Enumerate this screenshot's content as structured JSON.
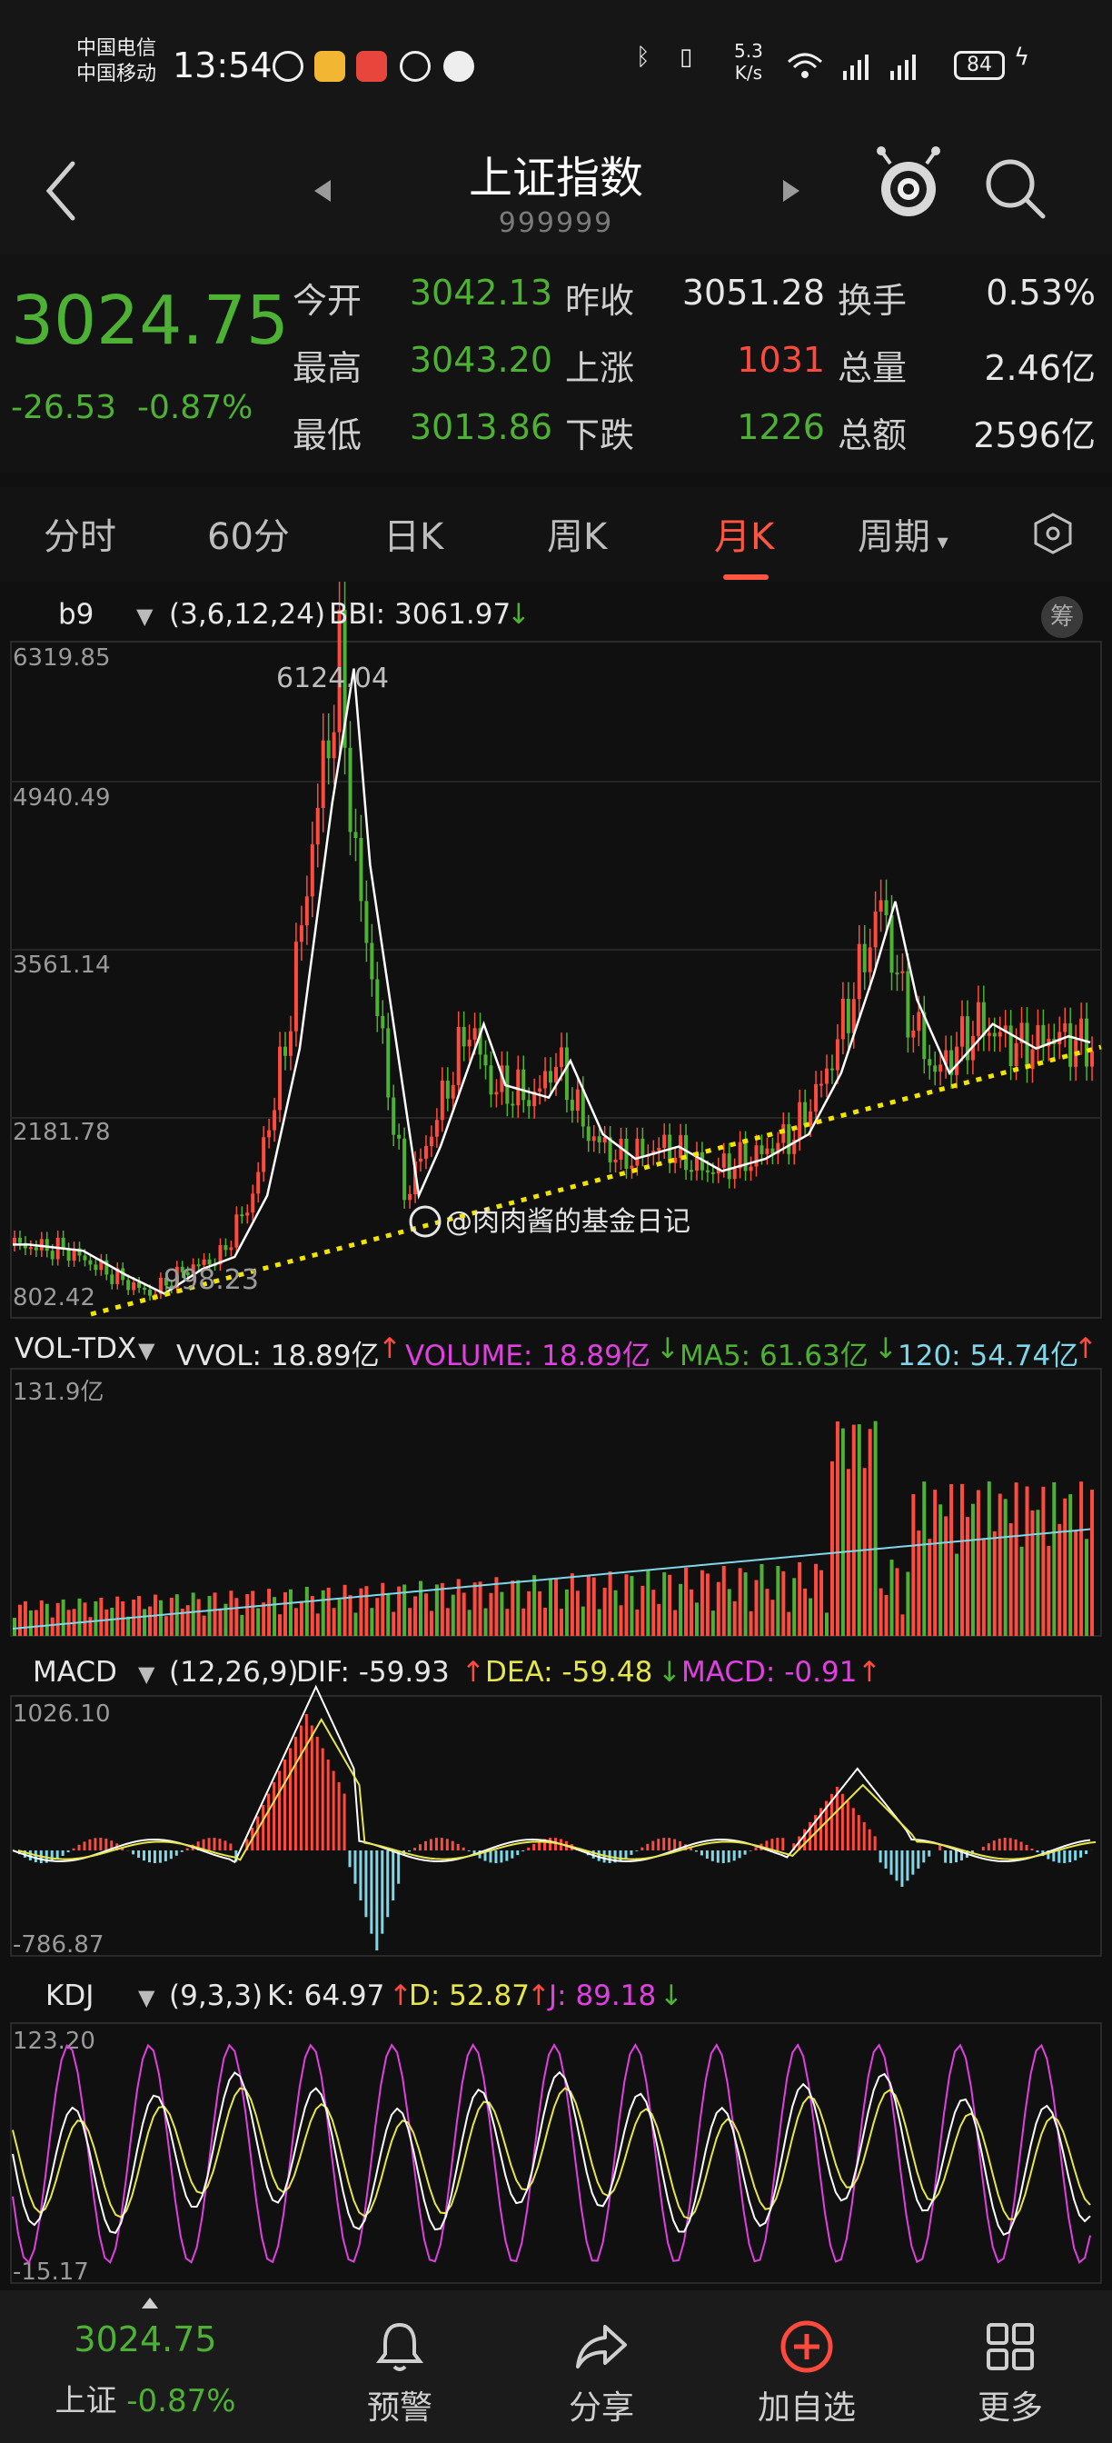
{
  "status_bar": {
    "carrier1": "中国电信",
    "carrier2": "中国移动",
    "time": "13:54",
    "speed_value": "5.3",
    "speed_unit": "K/s",
    "battery": "84"
  },
  "nav": {
    "title": "上证指数",
    "code": "999999"
  },
  "quote": {
    "price": "3024.75",
    "change": "-26.53",
    "change_pct": "-0.87%",
    "rows": [
      [
        {
          "label": "今开",
          "value": "3042.13",
          "color": "#4db233"
        },
        {
          "label": "昨收",
          "value": "3051.28",
          "color": "#e6e6e6"
        },
        {
          "label": "换手",
          "value": "0.53%",
          "color": "#e6e6e6"
        }
      ],
      [
        {
          "label": "最高",
          "value": "3043.20",
          "color": "#4db233"
        },
        {
          "label": "上涨",
          "value": "1031",
          "color": "#ff4a3d"
        },
        {
          "label": "总量",
          "value": "2.46亿",
          "color": "#e6e6e6"
        }
      ],
      [
        {
          "label": "最低",
          "value": "3013.86",
          "color": "#4db233"
        },
        {
          "label": "下跌",
          "value": "1226",
          "color": "#4db233"
        },
        {
          "label": "总额",
          "value": "2596亿",
          "color": "#e6e6e6"
        }
      ]
    ]
  },
  "tabs": [
    "分时",
    "60分",
    "日K",
    "周K",
    "月K",
    "周期"
  ],
  "active_tab": "月K",
  "main_indicator": {
    "name": "b9",
    "params": "(3,6,12,24)",
    "bbi": "BBI: 3061.97",
    "chip_label": "筹",
    "y_labels": [
      "6319.85",
      "4940.49",
      "3561.14",
      "2181.78",
      "802.42"
    ],
    "high_label": "6124.04",
    "low_label": "998.23",
    "watermark": "@肉肉酱的基金日记"
  },
  "vol_indicator": {
    "name": "VOL-TDX",
    "vvol": "VVOL: 18.89亿",
    "volume": "VOLUME: 18.89亿",
    "ma5": "MA5: 61.63亿",
    "ma120": "120: 54.74亿",
    "y_max": "131.9亿"
  },
  "macd_indicator": {
    "name": "MACD",
    "params": "(12,26,9)",
    "dif": "DIF: -59.93",
    "dea": "DEA: -59.48",
    "macd": "MACD: -0.91",
    "y_max": "1026.10",
    "y_min": "-786.87"
  },
  "kdj_indicator": {
    "name": "KDJ",
    "params": "(9,3,3)",
    "k": "K: 64.97",
    "d": "D: 52.87",
    "j": "J: 89.18",
    "y_max": "123.20",
    "y_min": "-15.17"
  },
  "bottom_nav": {
    "price": "3024.75",
    "index_name": "上证",
    "index_pct": "-0.87%",
    "items": [
      "预警",
      "分享",
      "加自选",
      "更多"
    ]
  },
  "colors": {
    "up": "#ff4a3d",
    "down": "#4db233",
    "magenta": "#e040e0",
    "yellow": "#e6e64a",
    "cyan": "#7fd6e6"
  }
}
